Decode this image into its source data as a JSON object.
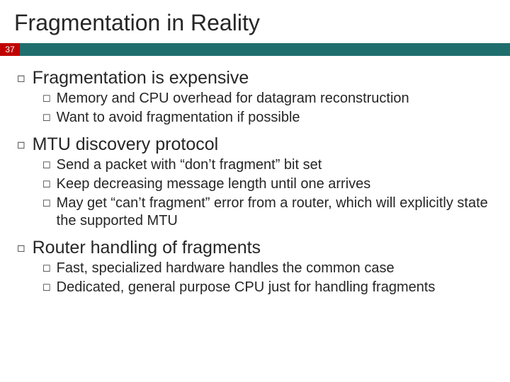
{
  "title": "Fragmentation in Reality",
  "slide_number": "37",
  "colors": {
    "accent_red": "#c00000",
    "bar_teal": "#1f6e6e",
    "text": "#262626",
    "background": "#ffffff"
  },
  "sections": [
    {
      "heading": "Fragmentation is expensive",
      "items": [
        "Memory and CPU overhead for datagram reconstruction",
        "Want to avoid fragmentation if possible"
      ]
    },
    {
      "heading": "MTU discovery protocol",
      "items": [
        "Send a packet with “don’t fragment” bit set",
        "Keep decreasing message length until one arrives",
        "May get “can’t fragment” error from a router, which will explicitly state the supported MTU"
      ]
    },
    {
      "heading": "Router handling of fragments",
      "items": [
        "Fast, specialized hardware handles the common case",
        "Dedicated, general purpose CPU just for handling fragments"
      ]
    }
  ]
}
